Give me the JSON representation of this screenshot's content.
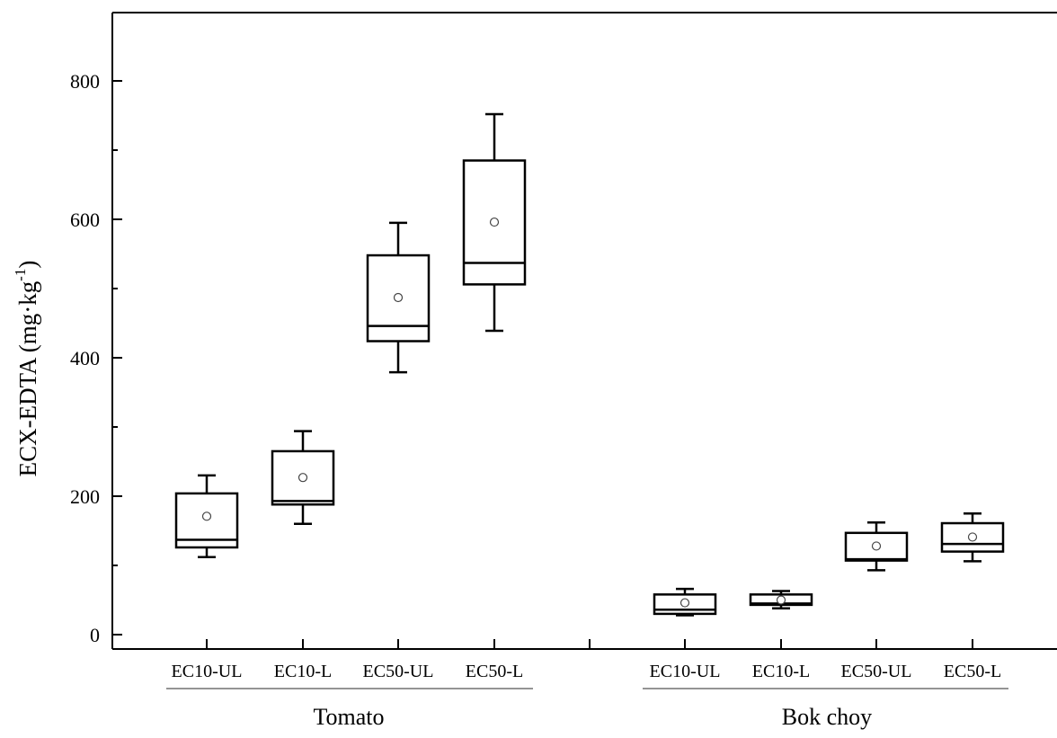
{
  "chart_data": {
    "type": "box",
    "title": "",
    "ylabel": "ECX-EDTA (mg·kg",
    "ylabel_superscript": "-1",
    "ylabel_suffix": ")",
    "xlabel": "",
    "ylim": [
      -20,
      900
    ],
    "yticks": [
      0,
      200,
      400,
      600,
      800
    ],
    "grid": false,
    "groups": [
      {
        "name": "Tomato",
        "categories": [
          "EC10-UL",
          "EC10-L",
          "EC50-UL",
          "EC50-L"
        ],
        "boxes": [
          {
            "label": "EC10-UL",
            "whisker_low": 112,
            "q1": 126,
            "median": 137,
            "q3": 204,
            "whisker_high": 230,
            "mean": 171
          },
          {
            "label": "EC10-L",
            "whisker_low": 160,
            "q1": 188,
            "median": 193,
            "q3": 265,
            "whisker_high": 294,
            "mean": 227
          },
          {
            "label": "EC50-UL",
            "whisker_low": 379,
            "q1": 424,
            "median": 446,
            "q3": 548,
            "whisker_high": 595,
            "mean": 487
          },
          {
            "label": "EC50-L",
            "whisker_low": 439,
            "q1": 506,
            "median": 537,
            "q3": 685,
            "whisker_high": 752,
            "mean": 596
          }
        ]
      },
      {
        "name": "Bok choy",
        "categories": [
          "EC10-UL",
          "EC10-L",
          "EC50-UL",
          "EC50-L"
        ],
        "boxes": [
          {
            "label": "EC10-UL",
            "whisker_low": 28,
            "q1": 30,
            "median": 36,
            "q3": 58,
            "whisker_high": 66,
            "mean": 46
          },
          {
            "label": "EC10-L",
            "whisker_low": 38,
            "q1": 43,
            "median": 45,
            "q3": 58,
            "whisker_high": 63,
            "mean": 50
          },
          {
            "label": "EC50-UL",
            "whisker_low": 93,
            "q1": 107,
            "median": 109,
            "q3": 147,
            "whisker_high": 162,
            "mean": 128
          },
          {
            "label": "EC50-L",
            "whisker_low": 106,
            "q1": 120,
            "median": 131,
            "q3": 161,
            "whisker_high": 175,
            "mean": 141
          }
        ]
      }
    ]
  }
}
